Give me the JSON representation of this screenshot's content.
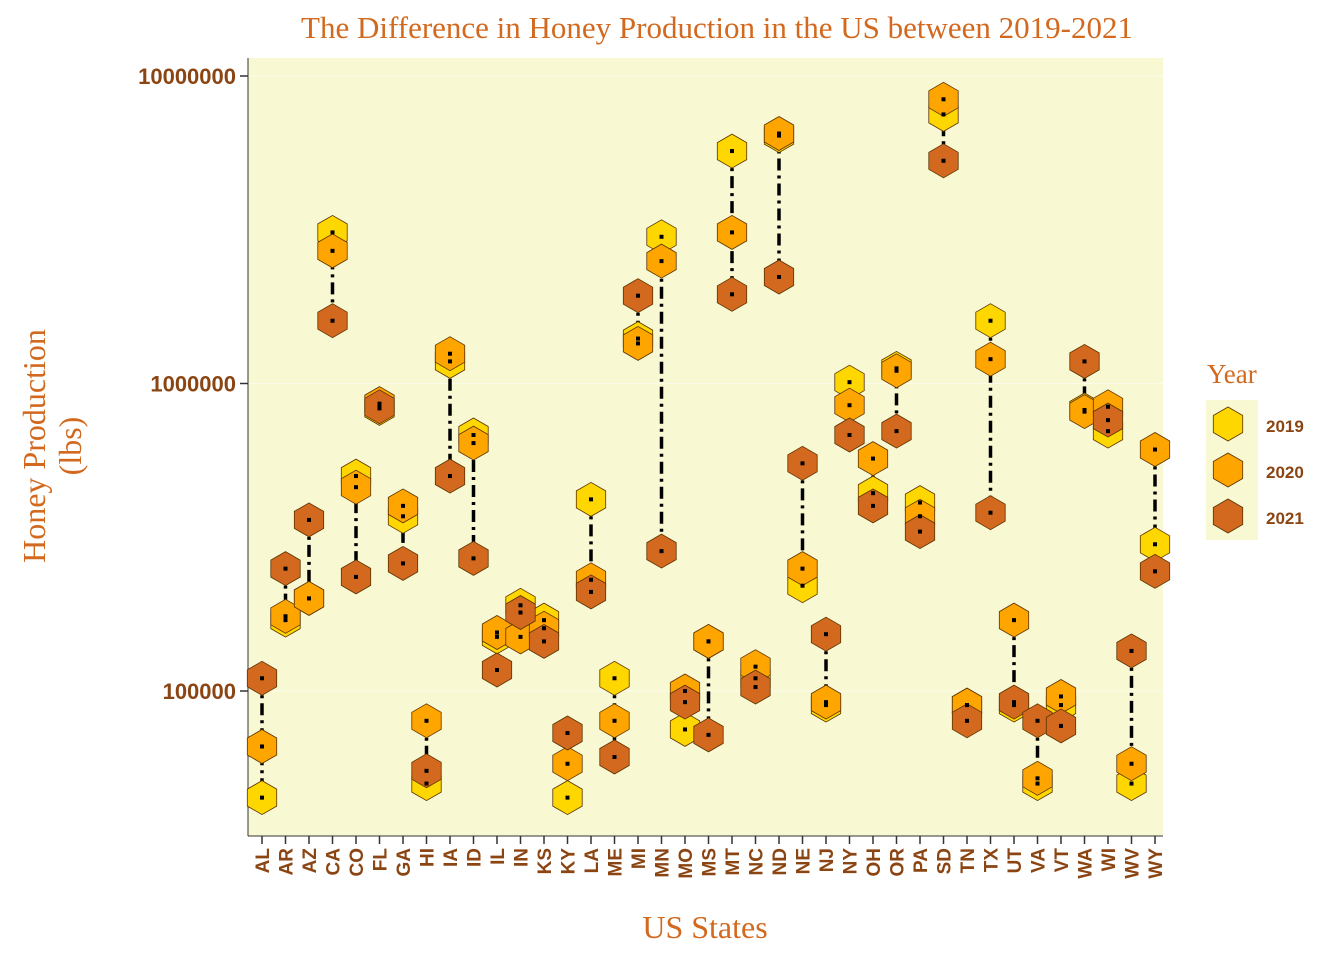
{
  "chart_data": {
    "type": "scatter",
    "title": "The Difference in Honey Production in the US between 2019-2021",
    "xlabel": "US States",
    "ylabel_lines": [
      "Honey Production",
      "(lbs)"
    ],
    "y_scale": "log10",
    "ylim": [
      33000,
      12000000
    ],
    "yticks": [
      100000,
      1000000,
      10000000
    ],
    "ytick_labels": [
      "100000",
      "1000000",
      "10000000"
    ],
    "legend_title": "Year",
    "legend_position": "right",
    "marker": "hexagon",
    "colors": {
      "2019": "#ffd700",
      "2020": "#ffa500",
      "2021": "#d2691e",
      "panel": "#f8f8d2",
      "text": "#8b4513",
      "title": "#d2691e"
    },
    "categories": [
      "AL",
      "AR",
      "AZ",
      "CA",
      "CO",
      "FL",
      "GA",
      "HI",
      "IA",
      "ID",
      "IL",
      "IN",
      "KS",
      "KY",
      "LA",
      "ME",
      "MI",
      "MN",
      "MO",
      "MS",
      "MT",
      "NC",
      "ND",
      "NE",
      "NJ",
      "NY",
      "OH",
      "OR",
      "PA",
      "SD",
      "TN",
      "TX",
      "UT",
      "VA",
      "VT",
      "WA",
      "WI",
      "WV",
      "WY"
    ],
    "series": [
      {
        "name": "2019",
        "values": [
          45000,
          170000,
          200000,
          3100000,
          500000,
          830000,
          370000,
          50000,
          1180000,
          680000,
          150000,
          190000,
          170000,
          45000,
          420000,
          110000,
          1400000,
          3000000,
          75000,
          145000,
          5700000,
          110000,
          6400000,
          220000,
          90000,
          1010000,
          440000,
          1120000,
          410000,
          7500000,
          90000,
          1600000,
          90000,
          50000,
          90000,
          820000,
          700000,
          50000,
          300000
        ]
      },
      {
        "name": "2020",
        "values": [
          66000,
          175000,
          200000,
          2700000,
          460000,
          860000,
          400000,
          80000,
          1250000,
          640000,
          155000,
          150000,
          160000,
          58000,
          230000,
          80000,
          1350000,
          2500000,
          100000,
          145000,
          3100000,
          120000,
          6500000,
          250000,
          92000,
          850000,
          570000,
          1100000,
          370000,
          8400000,
          90000,
          1200000,
          170000,
          52000,
          96000,
          810000,
          840000,
          58000,
          610000
        ]
      },
      {
        "name": "2021",
        "values": [
          110000,
          250000,
          360000,
          1600000,
          235000,
          840000,
          260000,
          55000,
          500000,
          270000,
          117000,
          180000,
          145000,
          73000,
          210000,
          61000,
          1930000,
          285000,
          92000,
          72000,
          1950000,
          103000,
          2220000,
          550000,
          153000,
          680000,
          400000,
          700000,
          330000,
          5300000,
          80000,
          380000,
          92000,
          80000,
          77000,
          1180000,
          760000,
          135000,
          245000
        ]
      }
    ]
  }
}
